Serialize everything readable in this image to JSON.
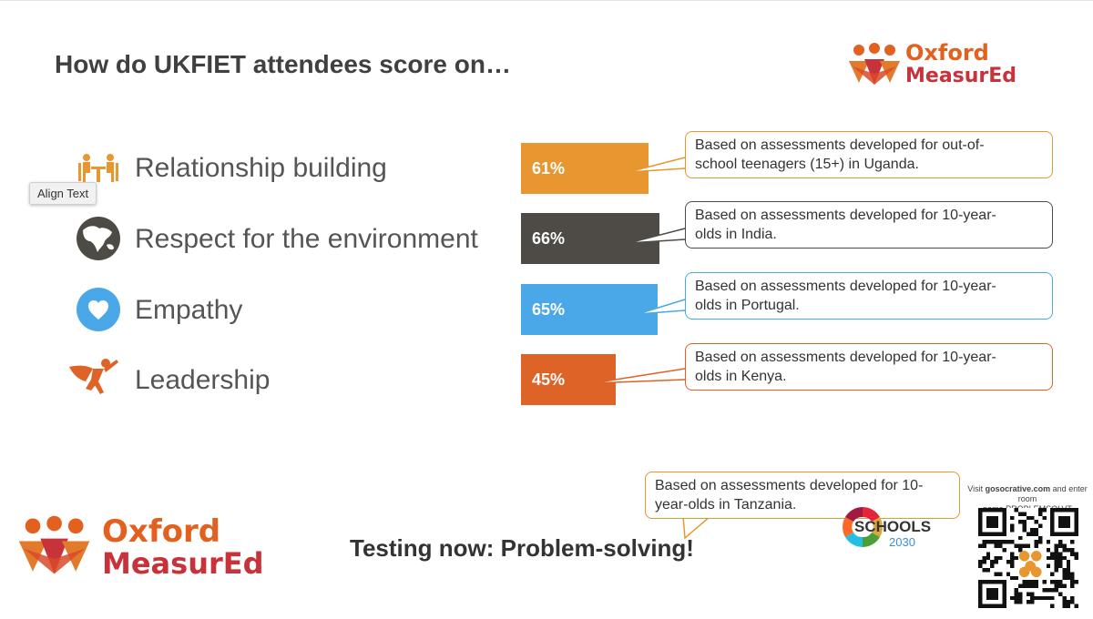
{
  "title": "How do UKFIET attendees score on…",
  "tooltip": "Align Text",
  "brand": {
    "line1": "Oxford",
    "line2": "MeasurEd"
  },
  "rows": [
    {
      "label": "Relationship building",
      "value": "61%",
      "fraction": 0.61,
      "color": "#e8962f",
      "icon": "meeting-icon",
      "note": {
        "line1": "Based on assessments developed for out-of-",
        "line2": "school teenagers (15+) in Uganda."
      }
    },
    {
      "label": "Respect for the environment",
      "value": "66%",
      "fraction": 0.66,
      "color": "#4e4a45",
      "icon": "globe-icon",
      "note": {
        "line1": "Based on assessments developed for 10-year-",
        "line2": "olds in India."
      }
    },
    {
      "label": "Empathy",
      "value": "65%",
      "fraction": 0.65,
      "color": "#4aa8e8",
      "icon": "heart-icon",
      "note": {
        "line1": "Based on assessments developed for 10-year-",
        "line2": "olds in Portugal."
      }
    },
    {
      "label": "Leadership",
      "value": "45%",
      "fraction": 0.45,
      "color": "#dd6326",
      "icon": "superhero-icon",
      "note": {
        "line1": "Based on assessments developed for 10-year-",
        "line2": "olds in Kenya."
      }
    }
  ],
  "bottom": {
    "heading": "Testing now: Problem-solving!",
    "note": {
      "line1": "Based on assessments developed for 10-",
      "line2": "year-olds in Tanzania."
    },
    "schools_logo": {
      "word": "SCHOOLS",
      "year": "2030"
    },
    "socrative": {
      "prefix": "Visit ",
      "site": "gosocrative.com",
      "suffix": " and enter room",
      "line2": "name PROBLEMSOLVT"
    }
  },
  "colors": {
    "brand_orange": "#e2611f",
    "brand_red": "#c8323a",
    "callout_orange": "#e8962f",
    "callout_dark": "#4e4a45",
    "callout_blue": "#4aa8e8",
    "callout_red": "#dd6326"
  }
}
